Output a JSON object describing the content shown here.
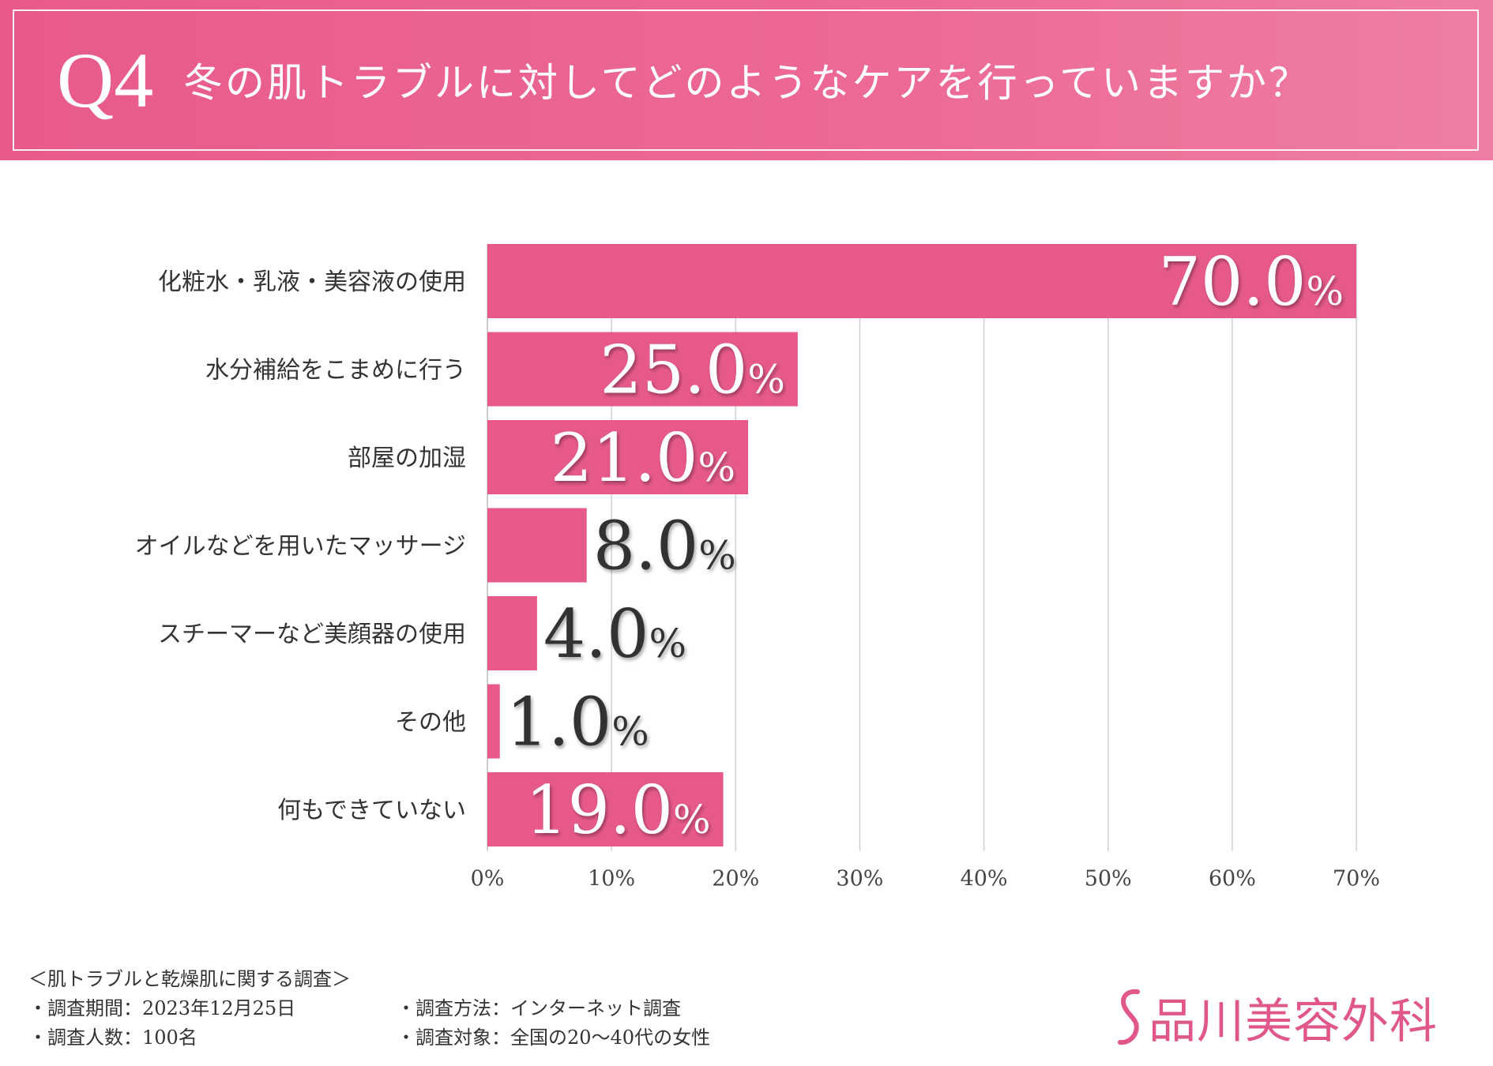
{
  "header": {
    "q_number": "Q4",
    "title": "冬の肌トラブルに対してどのようなケアを行っていますか？"
  },
  "chart_data": {
    "type": "bar",
    "orientation": "horizontal",
    "title": "冬の肌トラブルに対してどのようなケアを行っていますか？",
    "categories": [
      "化粧水・乳液・美容液の使用",
      "水分補給をこまめに行う",
      "部屋の加湿",
      "オイルなどを用いたマッサージ",
      "スチーマーなど美顔器の使用",
      "その他",
      "何もできていない"
    ],
    "values": [
      70.0,
      25.0,
      21.0,
      8.0,
      4.0,
      1.0,
      19.0
    ],
    "value_labels": [
      "70.0",
      "25.0",
      "21.0",
      "8.0",
      "4.0",
      "1.0",
      "19.0"
    ],
    "value_unit": "%",
    "xlim": [
      0,
      70
    ],
    "x_ticks": [
      "0%",
      "10%",
      "20%",
      "30%",
      "40%",
      "50%",
      "60%",
      "70%"
    ],
    "grid": true,
    "bar_color": "#e75a88",
    "label_inside_color": "#ffffff",
    "label_outside_color": "#333333"
  },
  "footer": {
    "survey_title": "＜肌トラブルと乾燥肌に関する調査＞",
    "period": "・調査期間：2023年12月25日",
    "method": "・調査方法：インターネット調査",
    "respondents": "・調査人数：100名",
    "target": "・調査対象：全国の20〜40代の女性"
  },
  "brand": {
    "name": "品川美容外科",
    "color": "#e0578a"
  }
}
